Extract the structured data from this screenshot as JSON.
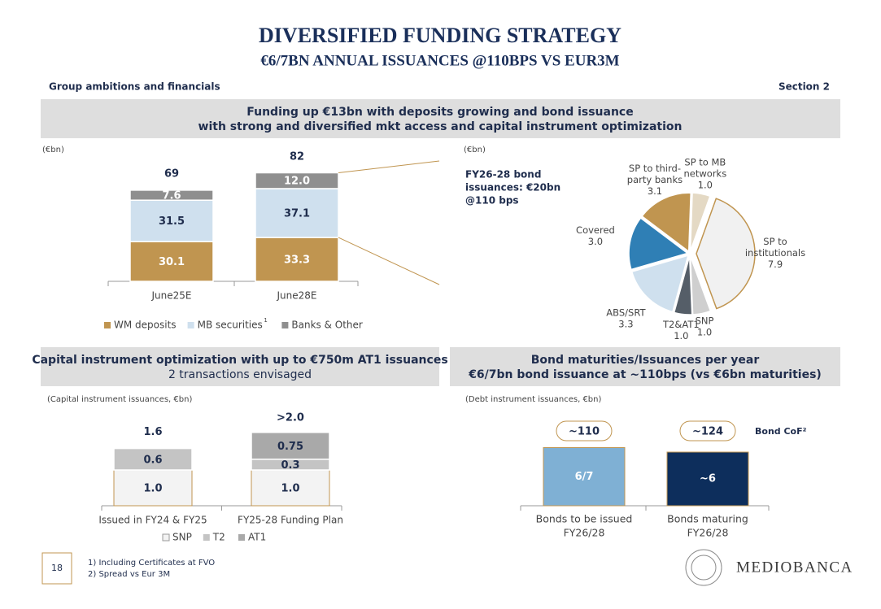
{
  "header": {
    "title": "DIVERSIFIED FUNDING STRATEGY",
    "subtitle": "€6/7BN ANNUAL ISSUANCES @110BPS VS EUR3M",
    "left": "Group ambitions and financials",
    "right": "Section 2"
  },
  "panels": [
    {
      "lines": [
        "Funding up €13bn with deposits growing and bond issuance",
        "with strong and diversified mkt access and capital instrument optimization"
      ]
    },
    {
      "lines": [
        "Capital instrument optimization with up to €750m AT1 issuances",
        "2 transactions envisaged"
      ]
    },
    {
      "lines": [
        "Bond maturities/Issuances per year",
        "€6/7bn bond issuance at ~110bps (vs €6bn maturities)"
      ]
    }
  ],
  "chart_data": [
    {
      "type": "stacked_bar",
      "unit": "(€bn)",
      "categories": [
        "June25E",
        "June28E"
      ],
      "series": [
        {
          "name": "WM deposits",
          "color": "#c09550",
          "values": [
            30.1,
            33.3
          ]
        },
        {
          "name": "MB securities",
          "note": "1",
          "color": "#cfe0ee",
          "values": [
            31.5,
            37.1
          ]
        },
        {
          "name": "Banks & Other",
          "color": "#8f8f8f",
          "values": [
            7.6,
            12.0
          ],
          "value_labels": [
            "7.6",
            "12.0"
          ]
        }
      ],
      "totals": [
        69,
        82
      ]
    },
    {
      "type": "pie",
      "unit": "(€bn)",
      "annotation": [
        "FY26-28 bond",
        "issuances: €20bn",
        "@110 bps"
      ],
      "categories": [
        [
          "SP to MB",
          "networks"
        ],
        [
          "SP to",
          "institutionals"
        ],
        [
          "SNP"
        ],
        [
          "T2&AT1"
        ],
        [
          "ABS/SRT"
        ],
        [
          "Covered"
        ],
        [
          "SP to third-",
          "party banks"
        ]
      ],
      "values": [
        1.0,
        7.9,
        1.0,
        1.0,
        3.3,
        3.0,
        3.1
      ],
      "value_labels": [
        "1.0",
        "7.9",
        "1.0",
        "1.0",
        "3.3",
        "3.0",
        "3.1"
      ],
      "colors": [
        "#e4d9c4",
        "#f1f1f1",
        "#cfcfcf",
        "#555e68",
        "#cfe0ee",
        "#2f7fb5",
        "#c09550"
      ]
    },
    {
      "type": "stacked_bar",
      "unit": "(Capital instrument issuances, €bn)",
      "categories": [
        "Issued in FY24 & FY25",
        "FY25-28 Funding Plan"
      ],
      "series": [
        {
          "name": "SNP",
          "color": "#f3f3f3",
          "values": [
            1.0,
            1.0
          ],
          "value_labels": [
            "1.0",
            "1.0"
          ]
        },
        {
          "name": "T2",
          "color": "#c4c4c4",
          "values": [
            0.6,
            0.3
          ]
        },
        {
          "name": "AT1",
          "color": "#a9a9a9",
          "values": [
            null,
            0.75
          ]
        }
      ],
      "totals": [
        1.6,
        2.0
      ],
      "total_labels": [
        "1.6",
        ">2.0"
      ]
    },
    {
      "type": "bar",
      "unit": "(Debt instrument issuances, €bn)",
      "categories": [
        [
          "Bonds to be issued",
          "FY26/28"
        ],
        [
          "Bonds maturing",
          "FY26/28"
        ]
      ],
      "values": [
        6.5,
        6
      ],
      "value_labels": [
        "6/7",
        "~6"
      ],
      "colors": [
        "#7fb0d4",
        "#0d2e5c"
      ],
      "cof_name": "Bond CoF²",
      "cof": [
        110,
        124
      ],
      "cof_labels": [
        "~110",
        "~124"
      ]
    }
  ],
  "footer": {
    "page": "18",
    "notes": [
      "1)  Including Certificates at FVO",
      "2)  Spread vs Eur 3M"
    ],
    "logo": "MEDIOBANCA"
  }
}
